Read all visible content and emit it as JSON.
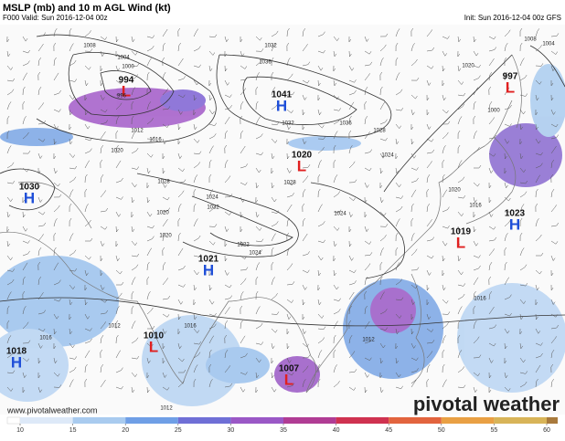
{
  "header": {
    "title": "MSLP (mb) and 10 m AGL Wind (kt)",
    "valid": "F000 Valid: Sun 2016-12-04 00z",
    "init": "Init: Sun 2016-12-04 00z GFS"
  },
  "centers": [
    {
      "type": "L",
      "pressure": "994"
    },
    {
      "type": "H",
      "pressure": "1041"
    },
    {
      "type": "L",
      "pressure": "1020"
    },
    {
      "type": "H",
      "pressure": "1030"
    },
    {
      "type": "H",
      "pressure": "1021"
    },
    {
      "type": "L",
      "pressure": "1010"
    },
    {
      "type": "H",
      "pressure": "1018"
    },
    {
      "type": "L",
      "pressure": "1007"
    },
    {
      "type": "L",
      "pressure": "1019"
    },
    {
      "type": "H",
      "pressure": "1023"
    },
    {
      "type": "L",
      "pressure": "997"
    }
  ],
  "isobar_labels": [
    "1008",
    "1004",
    "1000",
    "996",
    "1032",
    "1036",
    "1032",
    "1036",
    "1028",
    "1024",
    "1020",
    "1016",
    "1012",
    "1024",
    "1032",
    "1028",
    "1020",
    "1024",
    "1016",
    "1012",
    "1016",
    "1012",
    "1008",
    "1004",
    "1020",
    "1000",
    "1016",
    "1020",
    "1028",
    "1024",
    "1022",
    "1020",
    "1016",
    "1012"
  ],
  "colorbar": {
    "ticks": [
      10,
      15,
      20,
      25,
      30,
      35,
      40,
      45,
      50,
      55,
      60
    ],
    "colors": [
      "#dde9f8",
      "#a9cbef",
      "#6f9fe6",
      "#6f6fd6",
      "#9a58c6",
      "#b03c94",
      "#cf3250",
      "#e2643e",
      "#e9a044",
      "#d8b458",
      "#a97a3c"
    ]
  },
  "footer": {
    "website": "www.pivotalweather.com",
    "brand": "pivotal weather"
  }
}
